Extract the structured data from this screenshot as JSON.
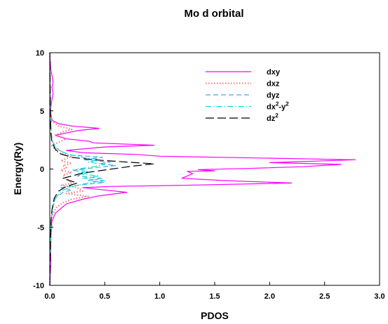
{
  "chart_data": {
    "type": "line",
    "title": "Mo d orbital",
    "xlabel": "PDOS",
    "ylabel": "Energy(Ry)",
    "xlim": [
      0.0,
      3.0
    ],
    "ylim": [
      -10,
      10
    ],
    "x_ticks": [
      "0.0",
      "0.5",
      "1.0",
      "1.5",
      "2.0",
      "2.5",
      "3.0"
    ],
    "y_ticks": [
      "-10",
      "-5",
      "0",
      "5",
      "10"
    ],
    "grid": false,
    "legend_position": "top-right",
    "series": [
      {
        "name": "dxy",
        "label_base": "dxy",
        "label_sup": "",
        "label_mid": "",
        "label_sup2": "",
        "color": "#ff00ff",
        "style": "solid",
        "points": [
          [
            0,
            -10
          ],
          [
            0.01,
            -8
          ],
          [
            0.005,
            -6
          ],
          [
            0.02,
            -4.5
          ],
          [
            0.05,
            -3.8
          ],
          [
            0.15,
            -3
          ],
          [
            0.3,
            -2.6
          ],
          [
            0.45,
            -2.3
          ],
          [
            0.7,
            -2
          ],
          [
            0.5,
            -1.8
          ],
          [
            0.3,
            -1.6
          ],
          [
            0.55,
            -1.5
          ],
          [
            1.2,
            -1.4
          ],
          [
            2.2,
            -1.2
          ],
          [
            1.6,
            -1.0
          ],
          [
            1.2,
            -0.8
          ],
          [
            1.3,
            -0.4
          ],
          [
            1.25,
            -0.2
          ],
          [
            1.5,
            -0.15
          ],
          [
            1.35,
            -0.05
          ],
          [
            1.8,
            0.05
          ],
          [
            2.3,
            0.2
          ],
          [
            2.65,
            0.4
          ],
          [
            2.0,
            0.55
          ],
          [
            2.78,
            0.8
          ],
          [
            1.9,
            0.95
          ],
          [
            1.0,
            1.1
          ],
          [
            0.8,
            1.25
          ],
          [
            0.3,
            1.4
          ],
          [
            0.15,
            1.6
          ],
          [
            0.5,
            1.9
          ],
          [
            0.95,
            2.05
          ],
          [
            0.4,
            2.25
          ],
          [
            0.35,
            2.4
          ],
          [
            0.15,
            2.6
          ],
          [
            0.05,
            2.9
          ],
          [
            0.25,
            3.3
          ],
          [
            0.45,
            3.5
          ],
          [
            0.2,
            3.7
          ],
          [
            0.08,
            3.9
          ],
          [
            0.02,
            4.2
          ],
          [
            0.005,
            5
          ],
          [
            0.02,
            6
          ],
          [
            0.03,
            6.5
          ],
          [
            0.02,
            7.0
          ],
          [
            0.03,
            7.5
          ],
          [
            0.01,
            8.5
          ],
          [
            0.0,
            10
          ]
        ]
      },
      {
        "name": "dxz",
        "label_base": "dxz",
        "label_sup": "",
        "label_mid": "",
        "label_sup2": "",
        "color": "#f08080",
        "style": "dotted",
        "points": [
          [
            0,
            -10
          ],
          [
            0.005,
            -7
          ],
          [
            0.02,
            -4
          ],
          [
            0.06,
            -3.3
          ],
          [
            0.12,
            -2.9
          ],
          [
            0.2,
            -2.6
          ],
          [
            0.35,
            -2.35
          ],
          [
            0.15,
            -2.1
          ],
          [
            0.3,
            -1.9
          ],
          [
            0.25,
            -1.6
          ],
          [
            0.1,
            -1.4
          ],
          [
            0.2,
            -1.2
          ],
          [
            0.15,
            -0.8
          ],
          [
            0.12,
            -0.5
          ],
          [
            0.2,
            -0.3
          ],
          [
            0.1,
            -0.1
          ],
          [
            0.15,
            0.1
          ],
          [
            0.12,
            0.3
          ],
          [
            0.2,
            0.5
          ],
          [
            0.1,
            0.7
          ],
          [
            0.15,
            0.9
          ],
          [
            0.2,
            1.1
          ],
          [
            0.1,
            1.3
          ],
          [
            0.05,
            1.6
          ],
          [
            0.02,
            2.0
          ],
          [
            0.08,
            2.3
          ],
          [
            0.15,
            2.6
          ],
          [
            0.05,
            2.9
          ],
          [
            0.12,
            3.2
          ],
          [
            0.2,
            3.4
          ],
          [
            0.08,
            3.7
          ],
          [
            0.02,
            4.1
          ],
          [
            0.005,
            5
          ],
          [
            0,
            10
          ]
        ]
      },
      {
        "name": "dyz",
        "label_base": "dyz",
        "label_sup": "",
        "label_mid": "",
        "label_sup2": "",
        "color": "#4fa8e0",
        "style": "dashed",
        "points": [
          [
            0,
            -10
          ],
          [
            0.005,
            -7
          ],
          [
            0.01,
            -4.5
          ],
          [
            0.03,
            -3.2
          ],
          [
            0.05,
            -2.5
          ],
          [
            0.12,
            -2.0
          ],
          [
            0.2,
            -1.8
          ],
          [
            0.1,
            -1.6
          ],
          [
            0.3,
            -1.35
          ],
          [
            0.5,
            -1.15
          ],
          [
            0.35,
            -1.0
          ],
          [
            0.48,
            -0.8
          ],
          [
            0.25,
            -0.6
          ],
          [
            0.35,
            -0.3
          ],
          [
            0.2,
            -0.1
          ],
          [
            0.4,
            0.1
          ],
          [
            0.6,
            0.3
          ],
          [
            0.45,
            0.45
          ],
          [
            0.55,
            0.6
          ],
          [
            0.3,
            0.8
          ],
          [
            0.48,
            1.0
          ],
          [
            0.2,
            1.2
          ],
          [
            0.1,
            1.5
          ],
          [
            0.05,
            1.9
          ],
          [
            0.02,
            2.5
          ],
          [
            0.01,
            3.5
          ],
          [
            0.005,
            5
          ],
          [
            0,
            10
          ]
        ]
      },
      {
        "name": "dx²-y²",
        "label_base": "dx",
        "label_sup": "2",
        "label_mid": "-y",
        "label_sup2": "2",
        "color": "#00e0e0",
        "style": "dashdot",
        "points": [
          [
            0,
            -10
          ],
          [
            0.005,
            -7
          ],
          [
            0.01,
            -4.5
          ],
          [
            0.03,
            -3.0
          ],
          [
            0.06,
            -2.4
          ],
          [
            0.1,
            -1.9
          ],
          [
            0.2,
            -1.5
          ],
          [
            0.35,
            -1.2
          ],
          [
            0.5,
            -1.0
          ],
          [
            0.3,
            -0.8
          ],
          [
            0.45,
            -0.6
          ],
          [
            0.25,
            -0.4
          ],
          [
            0.35,
            -0.2
          ],
          [
            0.25,
            0.0
          ],
          [
            0.4,
            0.2
          ],
          [
            0.5,
            0.4
          ],
          [
            0.35,
            0.6
          ],
          [
            0.45,
            0.8
          ],
          [
            0.3,
            1.0
          ],
          [
            0.15,
            1.3
          ],
          [
            0.05,
            1.8
          ],
          [
            0.02,
            2.5
          ],
          [
            0.005,
            4
          ],
          [
            0,
            10
          ]
        ]
      },
      {
        "name": "dz²",
        "label_base": "dz",
        "label_sup": "2",
        "label_mid": "",
        "label_sup2": "",
        "color": "#000000",
        "style": "longdash",
        "points": [
          [
            0,
            -10
          ],
          [
            0.005,
            -7
          ],
          [
            0.01,
            -4.5
          ],
          [
            0.02,
            -3.5
          ],
          [
            0.04,
            -2.5
          ],
          [
            0.08,
            -1.9
          ],
          [
            0.15,
            -1.5
          ],
          [
            0.25,
            -1.2
          ],
          [
            0.18,
            -1.0
          ],
          [
            0.12,
            -0.8
          ],
          [
            0.2,
            -0.6
          ],
          [
            0.3,
            -0.35
          ],
          [
            0.45,
            -0.15
          ],
          [
            0.6,
            0.05
          ],
          [
            0.75,
            0.25
          ],
          [
            0.95,
            0.45
          ],
          [
            0.7,
            0.6
          ],
          [
            0.4,
            0.8
          ],
          [
            0.2,
            1.0
          ],
          [
            0.1,
            1.3
          ],
          [
            0.05,
            1.7
          ],
          [
            0.02,
            2.3
          ],
          [
            0.01,
            3.0
          ],
          [
            0.005,
            4.5
          ],
          [
            0,
            10
          ]
        ]
      }
    ]
  }
}
